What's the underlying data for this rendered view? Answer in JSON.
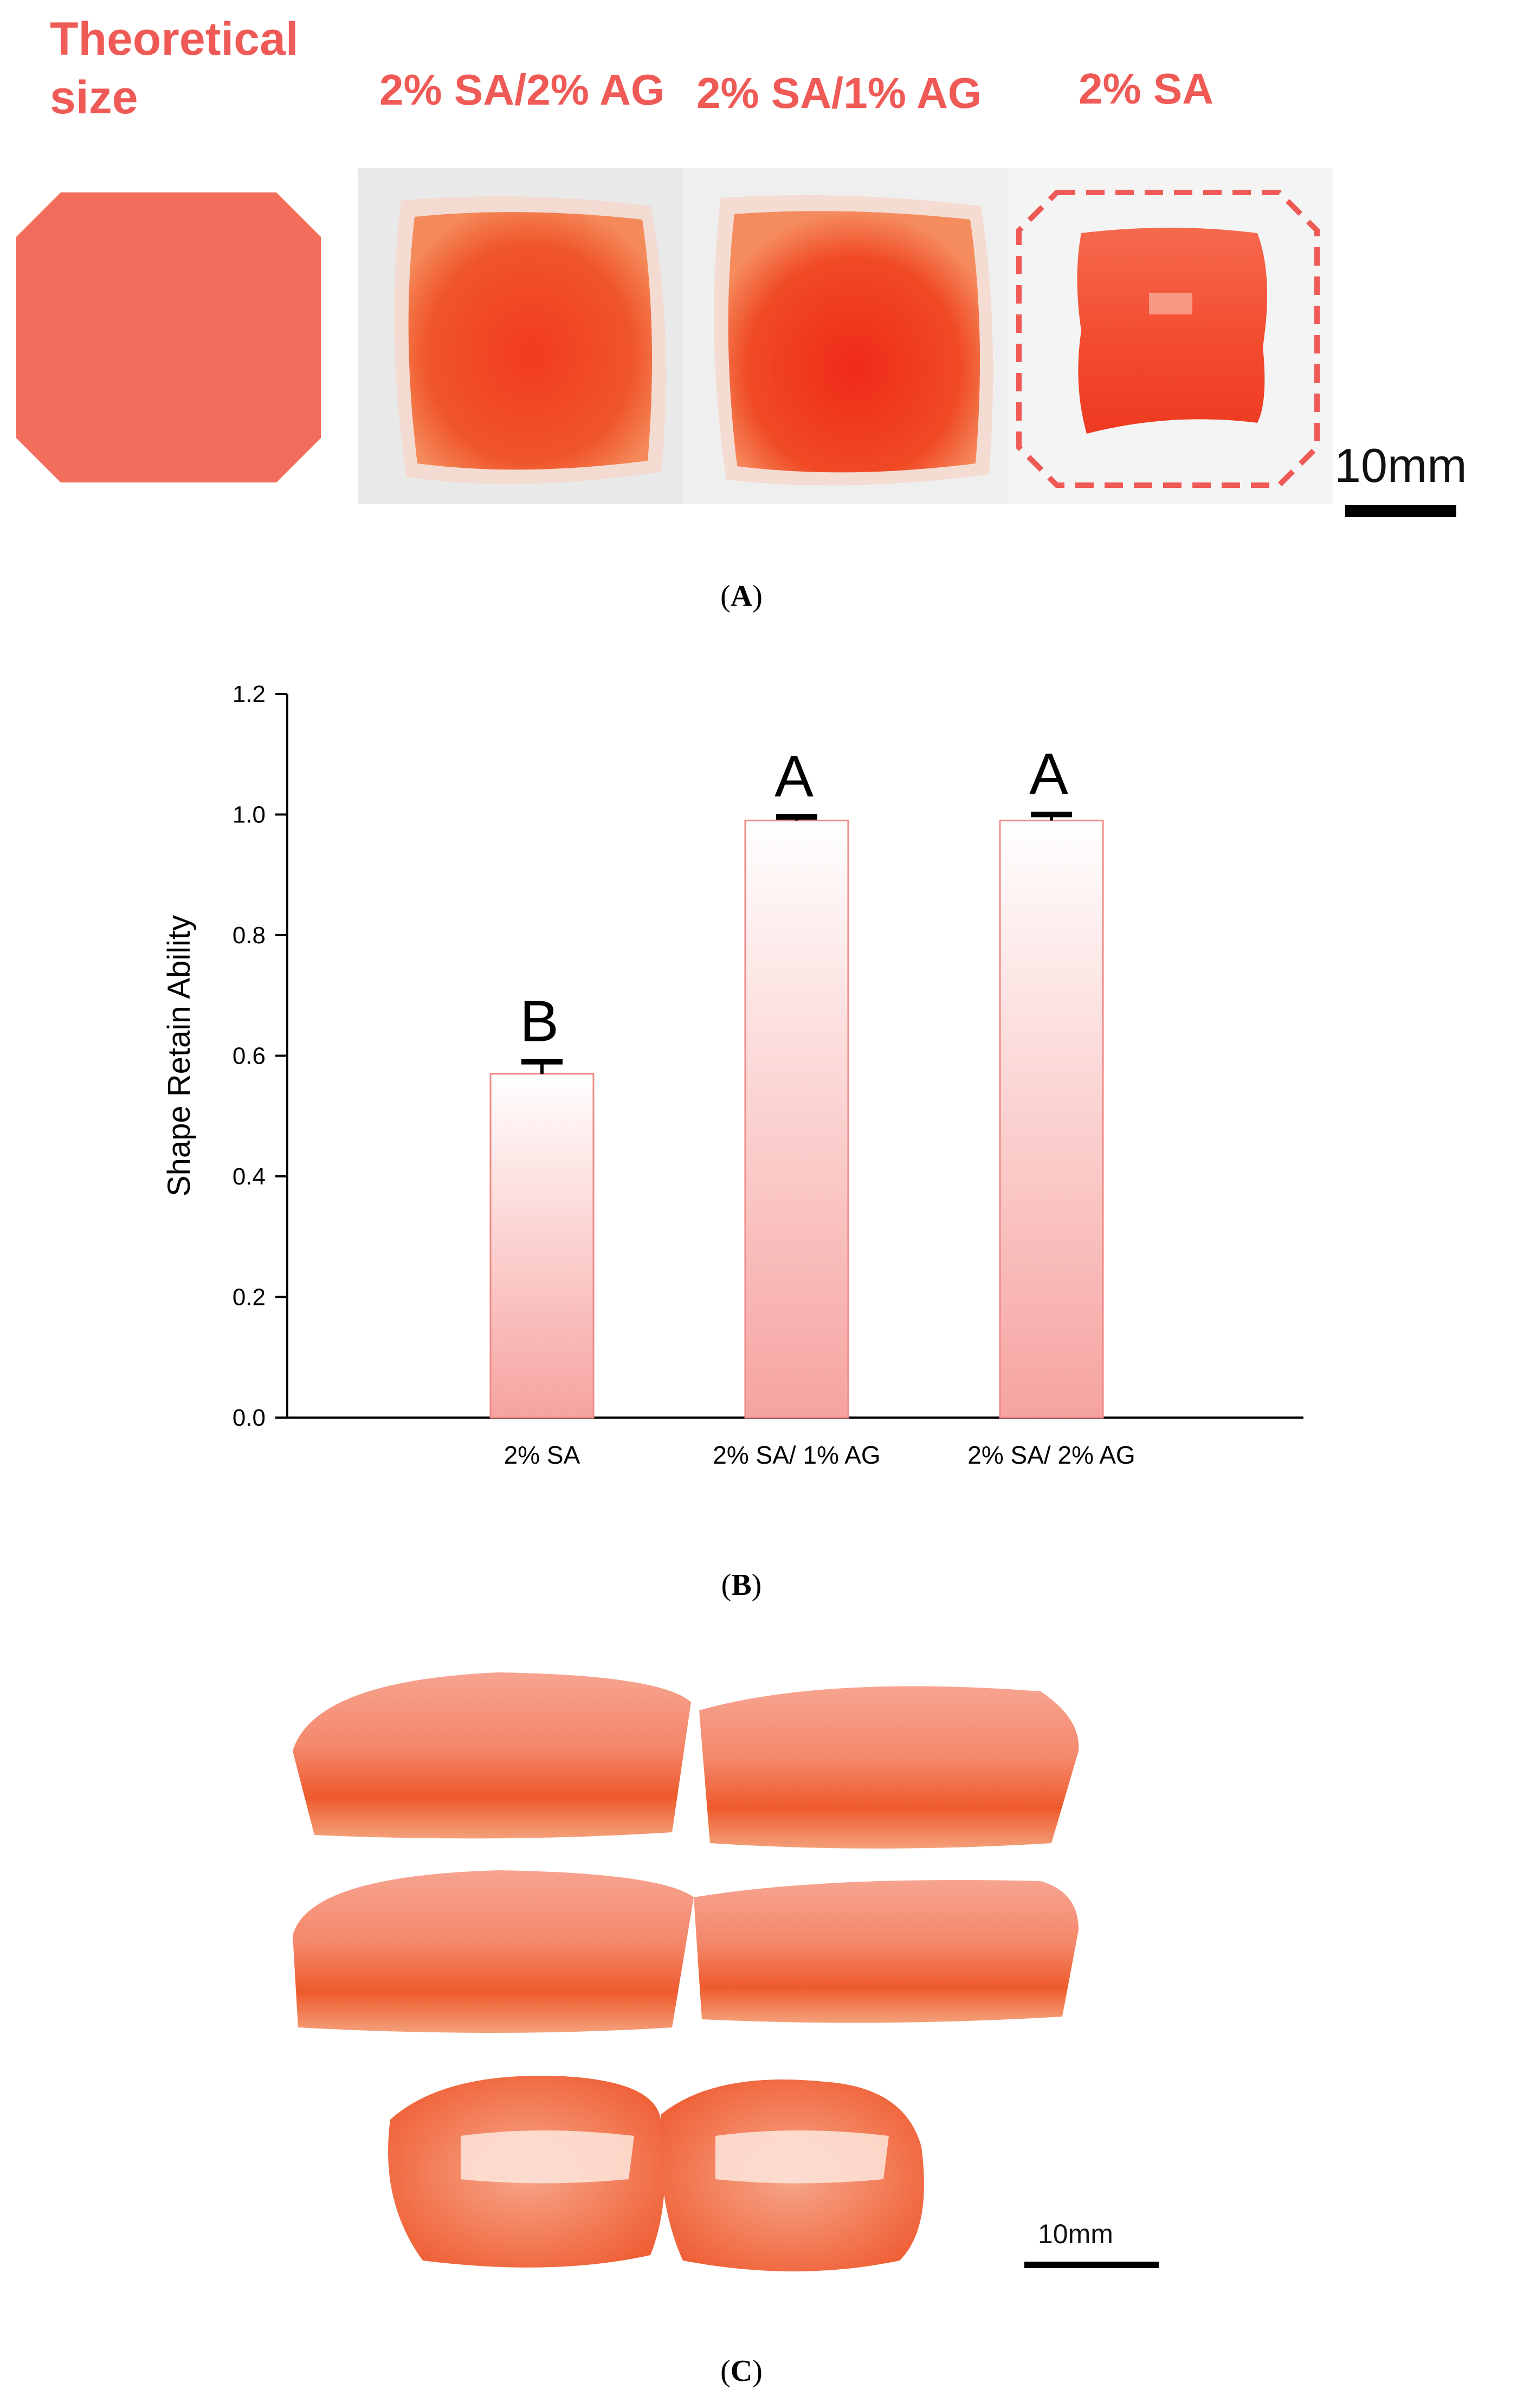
{
  "panel_a": {
    "theoretical_label_line1": "Theoretical",
    "theoretical_label_line2": "size",
    "labels": [
      "2% SA/2% AG",
      "2% SA/1% AG",
      "2% SA"
    ],
    "scale_label": "10mm",
    "caption_letter": "A",
    "colors": {
      "label": "#ef5a56",
      "theoretical_shape": "#f26d5b",
      "dashed_outline": "#ef5a56"
    }
  },
  "panel_b": {
    "caption_letter": "B"
  },
  "panel_c": {
    "scale_label": "10mm",
    "caption_letter": "C"
  },
  "chart_data": {
    "type": "bar",
    "categories": [
      "2% SA",
      "2% SA/ 1% AG",
      "2% SA/ 2% AG"
    ],
    "values": [
      0.57,
      0.99,
      0.99
    ],
    "errors": [
      0.02,
      0.006,
      0.01
    ],
    "significance_letters": [
      "B",
      "A",
      "A"
    ],
    "ylabel": "Shape Retain Ability",
    "xlabel": "",
    "ylim": [
      0.0,
      1.2
    ],
    "yticks": [
      "0.0",
      "0.2",
      "0.4",
      "0.6",
      "0.8",
      "1.0",
      "1.2"
    ],
    "grid": false,
    "colors": {
      "bar_fill_top": "#ffffff",
      "bar_fill_bottom": "#f6a3a0",
      "bar_edge": "#f08a86",
      "error_bar": "#000000"
    }
  }
}
